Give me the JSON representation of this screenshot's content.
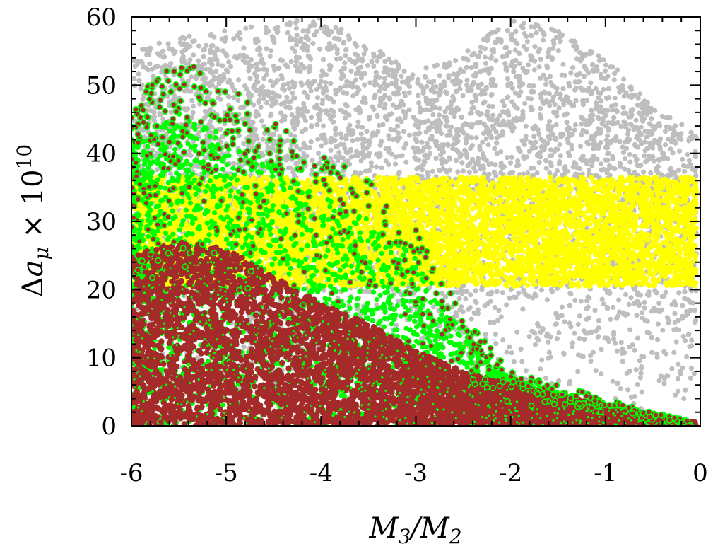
{
  "chart_data": {
    "type": "scatter",
    "xlabel": "M_3/M_2",
    "ylabel": "Δa_μ × 10^10",
    "xlim": [
      -6,
      0
    ],
    "ylim": [
      0,
      60
    ],
    "x_ticks": [
      "-6",
      "-5",
      "-4",
      "-3",
      "-2",
      "-1",
      "0"
    ],
    "y_ticks": [
      "0",
      "10",
      "20",
      "30",
      "40",
      "50",
      "60"
    ],
    "grid": false,
    "legend": "none",
    "colors": {
      "gray": "#bebebe",
      "yellow": "#ffff00",
      "green": "#00ff00",
      "brown": "#a52a2a"
    },
    "bands": {
      "yellow_band": [
        20.5,
        36.5
      ]
    },
    "regions": {
      "gray_envelope": [
        [
          -6.0,
          55
        ],
        [
          -5.5,
          57
        ],
        [
          -5.0,
          58
        ],
        [
          -4.5,
          59
        ],
        [
          -4.0,
          60
        ],
        [
          -3.5,
          56
        ],
        [
          -3.0,
          52
        ],
        [
          -2.5,
          55
        ],
        [
          -2.0,
          60
        ],
        [
          -1.5,
          58
        ],
        [
          -1.0,
          54
        ],
        [
          -0.5,
          47
        ],
        [
          -0.05,
          43
        ]
      ],
      "brown_envelope": [
        [
          -6.0,
          25
        ],
        [
          -5.5,
          27
        ],
        [
          -5.0,
          26
        ],
        [
          -4.5,
          22
        ],
        [
          -4.0,
          18
        ],
        [
          -3.5,
          15
        ],
        [
          -3.0,
          11
        ],
        [
          -2.5,
          8
        ],
        [
          -2.0,
          6
        ],
        [
          -1.5,
          4.5
        ],
        [
          -1.0,
          3
        ],
        [
          -0.5,
          1.5
        ],
        [
          -0.05,
          0.5
        ]
      ],
      "green_envelope": [
        [
          -6.0,
          48
        ],
        [
          -5.5,
          54
        ],
        [
          -5.0,
          50
        ],
        [
          -4.5,
          45
        ],
        [
          -4.0,
          40
        ],
        [
          -3.5,
          36
        ],
        [
          -3.0,
          29
        ],
        [
          -2.5,
          16
        ],
        [
          -2.0,
          8
        ],
        [
          -1.5,
          6
        ],
        [
          -1.0,
          4
        ],
        [
          -0.5,
          2
        ],
        [
          -0.05,
          0.5
        ]
      ]
    },
    "point_density": {
      "gray": 5000,
      "yellow": 7000,
      "green_dense": 3000,
      "green_scattered": 550,
      "brown": 6000
    }
  }
}
